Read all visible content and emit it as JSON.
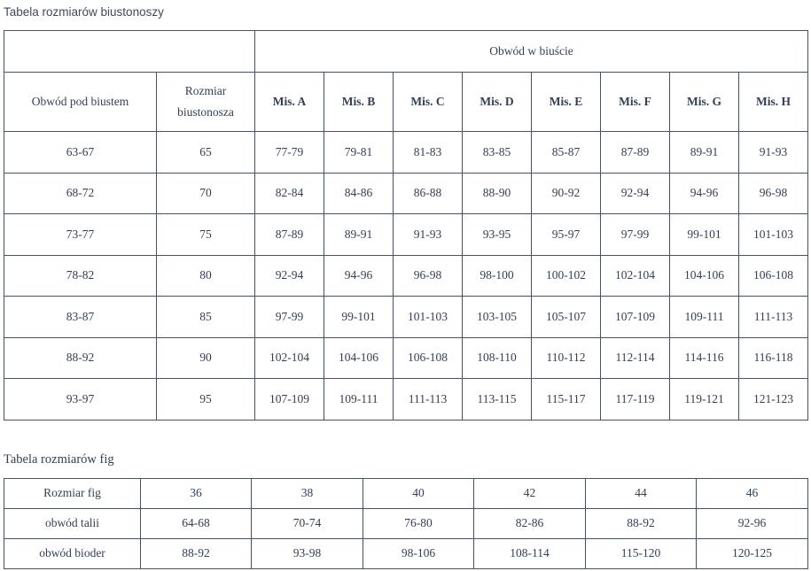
{
  "bra_table": {
    "title": "Tabela rozmiarów biustonoszy",
    "bust_header": "Obwód w biuście",
    "underbust_header": "Obwód pod biustem",
    "size_header": "Rozmiar biustonosza",
    "cup_headers": [
      "Mis. A",
      "Mis. B",
      "Mis. C",
      "Mis. D",
      "Mis. E",
      "Mis. F",
      "Mis. G",
      "Mis. H"
    ],
    "rows": [
      [
        "63-67",
        "65",
        "77-79",
        "79-81",
        "81-83",
        "83-85",
        "85-87",
        "87-89",
        "89-91",
        "91-93"
      ],
      [
        "68-72",
        "70",
        "82-84",
        "84-86",
        "86-88",
        "88-90",
        "90-92",
        "92-94",
        "94-96",
        "96-98"
      ],
      [
        "73-77",
        "75",
        "87-89",
        "89-91",
        "91-93",
        "93-95",
        "95-97",
        "97-99",
        "99-101",
        "101-103"
      ],
      [
        "78-82",
        "80",
        "92-94",
        "94-96",
        "96-98",
        "98-100",
        "100-102",
        "102-104",
        "104-106",
        "106-108"
      ],
      [
        "83-87",
        "85",
        "97-99",
        "99-101",
        "101-103",
        "103-105",
        "105-107",
        "107-109",
        "109-111",
        "111-113"
      ],
      [
        "88-92",
        "90",
        "102-104",
        "104-106",
        "106-108",
        "108-110",
        "110-112",
        "112-114",
        "114-116",
        "116-118"
      ],
      [
        "93-97",
        "95",
        "107-109",
        "109-111",
        "111-113",
        "113-115",
        "115-117",
        "117-119",
        "119-121",
        "121-123"
      ]
    ]
  },
  "fig_table": {
    "title": "Tabela rozmiarów fig",
    "rows": [
      [
        "Rozmiar fig",
        "36",
        "38",
        "40",
        "42",
        "44",
        "46"
      ],
      [
        "obwód talii",
        "64-68",
        "70-74",
        "76-80",
        "82-86",
        "88-92",
        "92-96"
      ],
      [
        "obwód bioder",
        "88-92",
        "93-98",
        "98-106",
        "108-114",
        "115-120",
        "120-125"
      ]
    ]
  },
  "colors": {
    "border": "#46506a",
    "cell_text": "#323f55",
    "title1_text": "#42485a",
    "title2_text": "#333f55",
    "background": "#ffffff"
  }
}
